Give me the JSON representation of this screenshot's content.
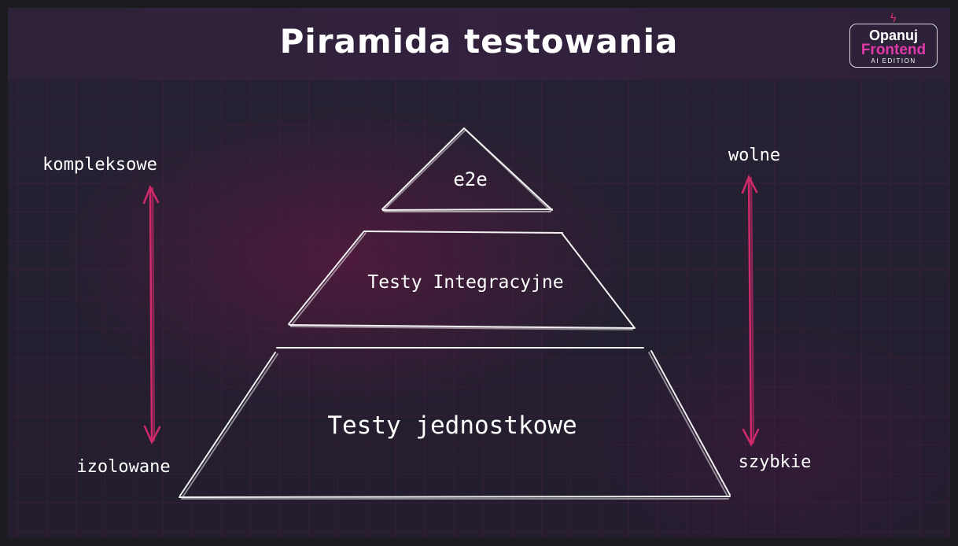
{
  "header": {
    "title": "Piramida testowania",
    "logo": {
      "line1": "Opanuj",
      "line2": "Frontend",
      "line3": "AI EDITION",
      "accent": "#e03aa8",
      "bolt_color": "#e5306f"
    }
  },
  "pyramid": {
    "top": "e2e",
    "middle": "Testy Integracyjne",
    "bottom": "Testy jednostkowe"
  },
  "left_axis": {
    "top": "kompleksowe",
    "bottom": "izolowane",
    "arrow_color": "#d12a6a"
  },
  "right_axis": {
    "top": "wolne",
    "bottom": "szybkie",
    "arrow_color": "#d12a6a"
  }
}
